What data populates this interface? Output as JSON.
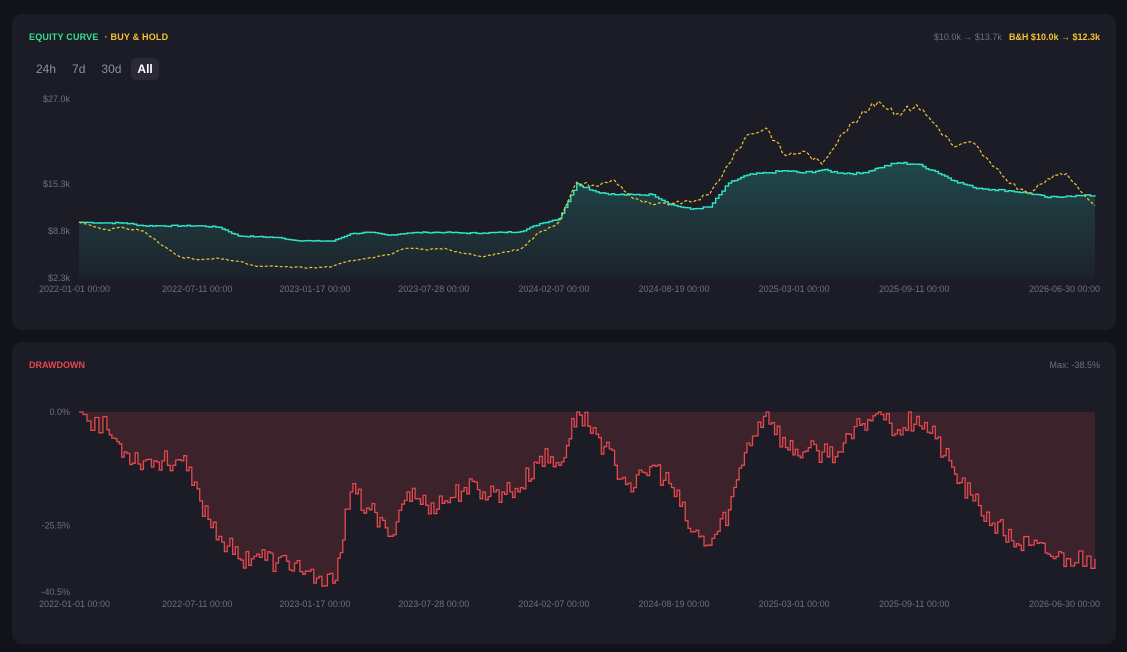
{
  "equity_panel": {
    "legend_equity": "EQUITY CURVE",
    "legend_bh": "· BUY & HOLD",
    "stats_equity": "$10.0k → $13.7k",
    "stats_bh": "B&H $10.0k → $12.3k",
    "range_buttons": [
      "24h",
      "7d",
      "30d",
      "All"
    ],
    "active_range": "All"
  },
  "drawdown_panel": {
    "title": "DRAWDOWN",
    "max_label": "Max: -38.5%"
  },
  "colors": {
    "equity": "#2ee6c8",
    "buy_hold": "#f4c430",
    "drawdown": "#e5484d",
    "legend_equity": "#33e08a"
  },
  "chart_data": [
    {
      "type": "line",
      "title": "EQUITY CURVE",
      "x_ticks": [
        "2022-01-01 00:00",
        "2022-07-11 00:00",
        "2023-01-17 00:00",
        "2023-07-28 00:00",
        "2024-02-07 00:00",
        "2024-08-19 00:00",
        "2025-03-01 00:00",
        "2025-09-11 00:00",
        "2026-06-30 00:00"
      ],
      "y_ticks": [
        "$27.0k",
        "$15.3k",
        "$8.8k",
        "$2.3k"
      ],
      "ylim": [
        2300,
        27000
      ],
      "x_range": [
        "2022-01-01",
        "2026-06-30"
      ],
      "series": [
        {
          "name": "EQUITY CURVE",
          "line_style": "solid",
          "fill": true,
          "x": [
            "2022-01-01",
            "2022-02-15",
            "2022-03-15",
            "2022-04-15",
            "2022-05-15",
            "2022-06-15",
            "2022-07-15",
            "2022-08-15",
            "2022-09-15",
            "2022-10-15",
            "2022-11-15",
            "2022-12-15",
            "2023-01-15",
            "2023-02-15",
            "2023-03-15",
            "2023-04-15",
            "2023-05-15",
            "2023-06-15",
            "2023-07-15",
            "2023-08-15",
            "2023-09-15",
            "2023-10-15",
            "2023-11-15",
            "2023-12-15",
            "2024-01-15",
            "2024-02-15",
            "2024-03-15",
            "2024-04-15",
            "2024-05-15",
            "2024-06-15",
            "2024-07-15",
            "2024-08-15",
            "2024-09-15",
            "2024-10-15",
            "2024-11-15",
            "2024-12-15",
            "2025-01-15",
            "2025-02-15",
            "2025-03-15",
            "2025-04-15",
            "2025-05-15",
            "2025-06-15",
            "2025-07-15",
            "2025-08-15",
            "2025-09-15",
            "2025-10-15",
            "2025-11-15",
            "2025-12-15",
            "2026-01-15",
            "2026-02-15",
            "2026-03-15",
            "2026-04-15",
            "2026-05-15",
            "2026-06-30"
          ],
          "values": [
            10000,
            9900,
            9900,
            9500,
            9500,
            9500,
            9500,
            9300,
            8100,
            8000,
            7900,
            7500,
            7400,
            7400,
            8400,
            8600,
            8200,
            8500,
            8600,
            8600,
            8500,
            8500,
            8600,
            8700,
            9800,
            10500,
            15300,
            14200,
            13800,
            13800,
            13800,
            12400,
            11800,
            12100,
            15400,
            16500,
            16800,
            17100,
            16800,
            17200,
            16800,
            16700,
            17500,
            18200,
            18000,
            17000,
            15700,
            14800,
            14500,
            14300,
            14000,
            13400,
            13600,
            13700
          ]
        },
        {
          "name": "BUY & HOLD",
          "line_style": "dashed",
          "fill": false,
          "x": [
            "2022-01-01",
            "2022-02-15",
            "2022-03-15",
            "2022-04-15",
            "2022-05-15",
            "2022-06-15",
            "2022-07-15",
            "2022-08-15",
            "2022-09-15",
            "2022-10-15",
            "2022-11-15",
            "2022-12-15",
            "2023-01-15",
            "2023-02-15",
            "2023-03-15",
            "2023-04-15",
            "2023-05-15",
            "2023-06-15",
            "2023-07-15",
            "2023-08-15",
            "2023-09-15",
            "2023-10-15",
            "2023-11-15",
            "2023-12-15",
            "2024-01-15",
            "2024-02-15",
            "2024-03-15",
            "2024-04-15",
            "2024-05-15",
            "2024-06-15",
            "2024-07-15",
            "2024-08-15",
            "2024-09-15",
            "2024-10-15",
            "2024-11-15",
            "2024-12-15",
            "2025-01-15",
            "2025-02-15",
            "2025-03-15",
            "2025-04-15",
            "2025-05-15",
            "2025-06-15",
            "2025-07-15",
            "2025-08-15",
            "2025-09-15",
            "2025-10-15",
            "2025-11-15",
            "2025-12-15",
            "2026-01-15",
            "2026-02-15",
            "2026-03-15",
            "2026-04-15",
            "2026-05-15",
            "2026-06-30"
          ],
          "values": [
            10000,
            9000,
            9200,
            8800,
            6800,
            5200,
            4800,
            5000,
            4600,
            3900,
            3900,
            3800,
            3700,
            3900,
            4700,
            5100,
            5500,
            6400,
            6200,
            6400,
            5700,
            5200,
            5800,
            6300,
            8600,
            10000,
            15500,
            15000,
            15800,
            13200,
            12400,
            12600,
            12800,
            13800,
            18000,
            22000,
            23000,
            19200,
            19800,
            18000,
            22000,
            24500,
            26700,
            25000,
            26200,
            23500,
            20400,
            21000,
            17800,
            15300,
            13900,
            16000,
            16700,
            12300
          ]
        }
      ]
    },
    {
      "type": "area",
      "title": "DRAWDOWN",
      "x_ticks": [
        "2022-01-01 00:00",
        "2022-07-11 00:00",
        "2023-01-17 00:00",
        "2023-07-28 00:00",
        "2024-02-07 00:00",
        "2024-08-19 00:00",
        "2025-03-01 00:00",
        "2025-09-11 00:00",
        "2026-06-30 00:00"
      ],
      "y_ticks": [
        "0.0%",
        "-25.5%",
        "-40.5%"
      ],
      "ylim": [
        -40.5,
        0
      ],
      "x_range": [
        "2022-01-01",
        "2026-06-30"
      ],
      "series": [
        {
          "name": "Drawdown",
          "x": [
            "2022-01-01",
            "2022-02-15",
            "2022-03-15",
            "2022-04-15",
            "2022-05-15",
            "2022-06-15",
            "2022-07-15",
            "2022-08-15",
            "2022-09-15",
            "2022-10-15",
            "2022-11-15",
            "2022-12-15",
            "2023-01-15",
            "2023-02-15",
            "2023-03-15",
            "2023-04-15",
            "2023-05-15",
            "2023-06-15",
            "2023-07-15",
            "2023-08-15",
            "2023-09-15",
            "2023-10-15",
            "2023-11-15",
            "2023-12-15",
            "2024-01-15",
            "2024-02-15",
            "2024-03-15",
            "2024-04-15",
            "2024-05-15",
            "2024-06-15",
            "2024-07-15",
            "2024-08-15",
            "2024-09-15",
            "2024-10-15",
            "2024-11-15",
            "2024-12-15",
            "2025-01-15",
            "2025-02-15",
            "2025-03-15",
            "2025-04-15",
            "2025-05-15",
            "2025-06-15",
            "2025-07-15",
            "2025-08-15",
            "2025-09-15",
            "2025-10-15",
            "2025-11-15",
            "2025-12-15",
            "2026-01-15",
            "2026-02-15",
            "2026-03-15",
            "2026-04-15",
            "2026-05-15",
            "2026-06-30"
          ],
          "values": [
            0,
            -4,
            -9,
            -11,
            -11,
            -11,
            -20,
            -28,
            -33,
            -32,
            -34,
            -34,
            -38.5,
            -38.5,
            -18,
            -22,
            -28,
            -18,
            -21,
            -20,
            -17,
            -18,
            -18,
            -17,
            -10,
            -12,
            0,
            -5,
            -12,
            -17,
            -12,
            -17,
            -27,
            -30,
            -22,
            -7,
            0,
            -8,
            -9,
            -9,
            -9,
            -3,
            0,
            -4,
            -1,
            -6,
            -14,
            -20,
            -25,
            -29,
            -30,
            -32,
            -33,
            -33
          ]
        }
      ]
    }
  ]
}
